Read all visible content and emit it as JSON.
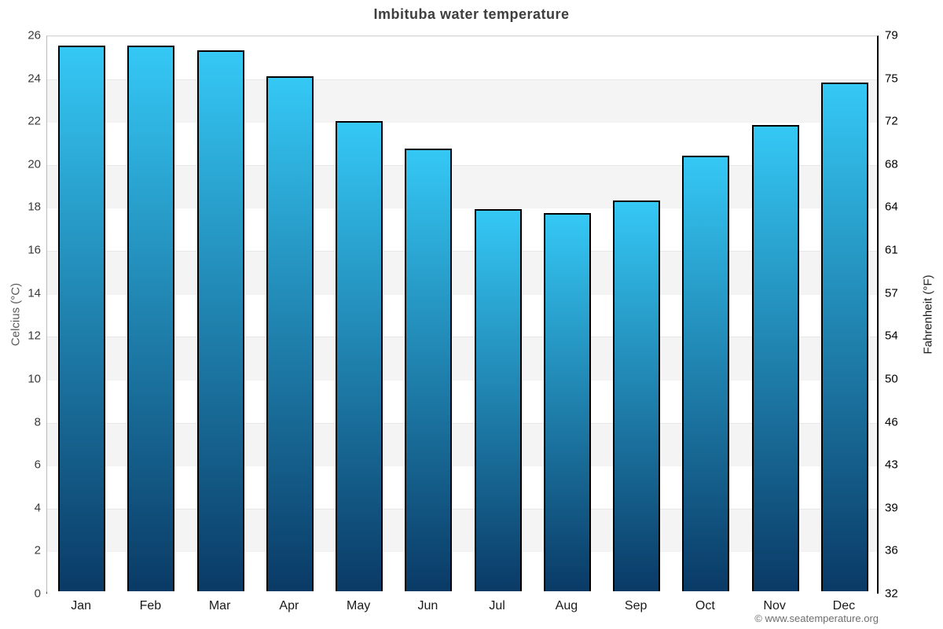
{
  "title": "Imbituba water temperature",
  "footer": "© www.seatemperature.org",
  "chart_data": {
    "type": "bar",
    "title": "Imbituba water temperature",
    "categories": [
      "Jan",
      "Feb",
      "Mar",
      "Apr",
      "May",
      "Jun",
      "Jul",
      "Aug",
      "Sep",
      "Oct",
      "Nov",
      "Dec"
    ],
    "values": [
      25.4,
      25.4,
      25.2,
      24.0,
      21.9,
      20.6,
      17.8,
      17.6,
      18.2,
      20.3,
      21.7,
      23.7
    ],
    "unit": "°C",
    "ylabel_left": "Celcius (°C)",
    "ylabel_right": "Fahrenheit (°F)",
    "ylim_celsius": [
      0,
      26
    ],
    "celsius_ticks": [
      0,
      2,
      4,
      6,
      8,
      10,
      12,
      14,
      16,
      18,
      20,
      22,
      24,
      26
    ],
    "fahrenheit_tick_labels": [
      "32",
      "36",
      "39",
      "43",
      "46",
      "50",
      "54",
      "57",
      "61",
      "64",
      "68",
      "72",
      "75",
      "79"
    ],
    "legend": "none",
    "grid": "alternating horizontal bands every 2°C",
    "colors": {
      "bar_gradient_top": "#35c8f5",
      "bar_gradient_bottom": "#0a3a66",
      "bar_border": "#000000",
      "band_gray": "#f4f4f4",
      "band_white": "#ffffff",
      "title_text": "#3e3e3e",
      "footer_text": "#6e6e6e"
    }
  }
}
